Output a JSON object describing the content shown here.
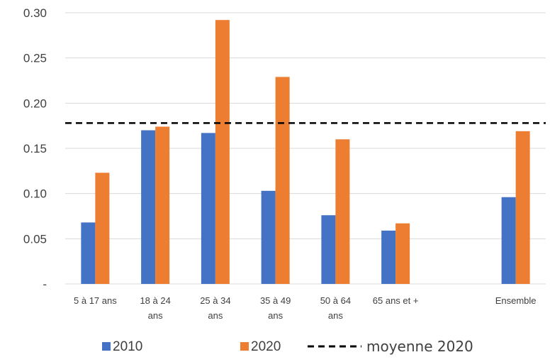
{
  "chart_data": {
    "type": "bar",
    "categories": [
      [
        "5 à 17 ans"
      ],
      [
        "18 à 24",
        "ans"
      ],
      [
        "25 à 34",
        "ans"
      ],
      [
        "35 à 49",
        "ans"
      ],
      [
        "50 à 64",
        "ans"
      ],
      [
        "65 ans et +"
      ],
      [
        ""
      ],
      [
        "Ensemble"
      ]
    ],
    "series": [
      {
        "name": "2010",
        "color": "#4472C4",
        "values": [
          0.068,
          0.17,
          0.167,
          0.103,
          0.076,
          0.059,
          null,
          0.096
        ]
      },
      {
        "name": "2020",
        "color": "#ED7D31",
        "values": [
          0.123,
          0.174,
          0.292,
          0.229,
          0.16,
          0.067,
          null,
          0.169
        ]
      }
    ],
    "reference_line": {
      "name": "moyenne 2020",
      "value": 0.178,
      "style": "dashed",
      "color": "#000000"
    },
    "yticks": [
      {
        "value": 0,
        "label": "-"
      },
      {
        "value": 0.05,
        "label": "0.05"
      },
      {
        "value": 0.1,
        "label": "0.10"
      },
      {
        "value": 0.15,
        "label": "0.15"
      },
      {
        "value": 0.2,
        "label": "0.20"
      },
      {
        "value": 0.25,
        "label": "0.25"
      },
      {
        "value": 0.3,
        "label": "0.30"
      }
    ],
    "ylim": [
      0,
      0.3
    ],
    "grid": true,
    "legend": "bottom",
    "title": "",
    "xlabel": "",
    "ylabel": ""
  }
}
